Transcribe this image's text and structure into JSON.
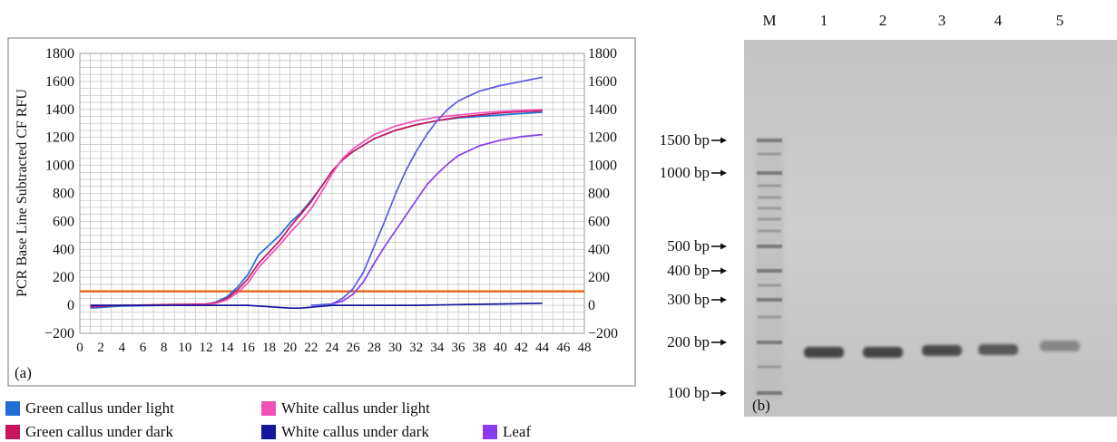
{
  "panel_a": {
    "label": "(a)",
    "ylabel": "PCR Base Line Subtracted CF RFU",
    "threshold_value": 100,
    "threshold_color": "#e8702a"
  },
  "panel_b": {
    "label": "(b)",
    "lane_labels": [
      "M",
      "1",
      "2",
      "3",
      "4",
      "5"
    ],
    "ladder": [
      {
        "label": "1500 bp",
        "size": 1500
      },
      {
        "label": "1000 bp",
        "size": 1000
      },
      {
        "label": "500 bp",
        "size": 500
      },
      {
        "label": "400 bp",
        "size": 400
      },
      {
        "label": "300 bp",
        "size": 300
      },
      {
        "label": "200 bp",
        "size": 200
      },
      {
        "label": "100 bp",
        "size": 100
      }
    ],
    "sample_band_size": 180,
    "gel_color": "#c9c9c9",
    "band_color": "#3c3c3c"
  },
  "legend": [
    {
      "label": "Green callus under light",
      "color": "#1f6fd6"
    },
    {
      "label": "White callus under light",
      "color": "#f052b8"
    },
    {
      "label": "Green callus under dark",
      "color": "#c8145a"
    },
    {
      "label": "White callus under dark",
      "color": "#16169c"
    },
    {
      "label": "Leaf",
      "color": "#8a3cf0"
    }
  ],
  "chart_data": {
    "type": "line",
    "xlim": [
      0,
      48
    ],
    "ylim": [
      -200,
      1800
    ],
    "x_ticks": [
      0,
      2,
      4,
      6,
      8,
      10,
      12,
      14,
      16,
      18,
      20,
      22,
      24,
      26,
      28,
      30,
      32,
      34,
      36,
      38,
      40,
      42,
      44,
      46,
      48
    ],
    "y_ticks": [
      -200,
      0,
      200,
      400,
      600,
      800,
      1000,
      1200,
      1400,
      1600,
      1800
    ],
    "grid": true,
    "threshold": 100,
    "series": [
      {
        "name": "Green callus under light",
        "color": "#1f6fd6",
        "x": [
          1,
          4,
          8,
          12,
          13,
          14,
          15,
          16,
          17,
          18,
          19,
          20,
          21,
          22,
          23,
          24,
          25,
          26,
          28,
          30,
          32,
          34,
          36,
          38,
          40,
          42,
          44
        ],
        "y": [
          -20,
          -5,
          0,
          5,
          25,
          60,
          130,
          220,
          360,
          430,
          500,
          590,
          660,
          750,
          850,
          960,
          1040,
          1100,
          1190,
          1250,
          1290,
          1320,
          1340,
          1350,
          1360,
          1370,
          1380
        ]
      },
      {
        "name": "Green callus under dark",
        "color": "#c8145a",
        "x": [
          1,
          4,
          8,
          12,
          13,
          14,
          15,
          16,
          17,
          18,
          19,
          20,
          21,
          22,
          23,
          24,
          25,
          26,
          28,
          30,
          32,
          34,
          36,
          38,
          40,
          42,
          44
        ],
        "y": [
          -10,
          0,
          5,
          10,
          20,
          50,
          110,
          190,
          300,
          380,
          460,
          560,
          650,
          740,
          850,
          960,
          1040,
          1100,
          1190,
          1250,
          1290,
          1320,
          1345,
          1360,
          1375,
          1385,
          1390
        ]
      },
      {
        "name": "White callus under light",
        "color": "#f052b8",
        "x": [
          1,
          4,
          8,
          12,
          13,
          14,
          15,
          16,
          17,
          18,
          19,
          20,
          21,
          22,
          23,
          24,
          25,
          26,
          28,
          30,
          32,
          34,
          36,
          38,
          40,
          42,
          44
        ],
        "y": [
          0,
          0,
          0,
          5,
          15,
          40,
          90,
          160,
          270,
          350,
          430,
          520,
          600,
          690,
          810,
          940,
          1050,
          1120,
          1220,
          1280,
          1320,
          1345,
          1360,
          1375,
          1385,
          1392,
          1400
        ]
      },
      {
        "name": "White callus under dark",
        "color": "#16169c",
        "x": [
          1,
          4,
          8,
          12,
          16,
          20,
          21,
          24,
          28,
          32,
          36,
          40,
          44
        ],
        "y": [
          0,
          0,
          0,
          0,
          0,
          -20,
          -20,
          0,
          0,
          0,
          5,
          10,
          15
        ]
      },
      {
        "name": "Leaf (blue-violet trace)",
        "color": "#5a5ae0",
        "x": [
          22,
          24,
          25,
          26,
          27,
          28,
          29,
          30,
          31,
          32,
          33,
          34,
          35,
          36,
          38,
          40,
          42,
          44
        ],
        "y": [
          0,
          10,
          50,
          120,
          240,
          420,
          600,
          790,
          960,
          1100,
          1220,
          1320,
          1400,
          1460,
          1530,
          1570,
          1600,
          1630
        ]
      },
      {
        "name": "Leaf",
        "color": "#8a3cf0",
        "x": [
          24,
          25,
          26,
          27,
          28,
          29,
          30,
          31,
          32,
          33,
          34,
          35,
          36,
          38,
          40,
          42,
          44
        ],
        "y": [
          10,
          30,
          80,
          170,
          300,
          420,
          530,
          640,
          750,
          860,
          940,
          1010,
          1070,
          1140,
          1180,
          1205,
          1220
        ]
      }
    ]
  }
}
